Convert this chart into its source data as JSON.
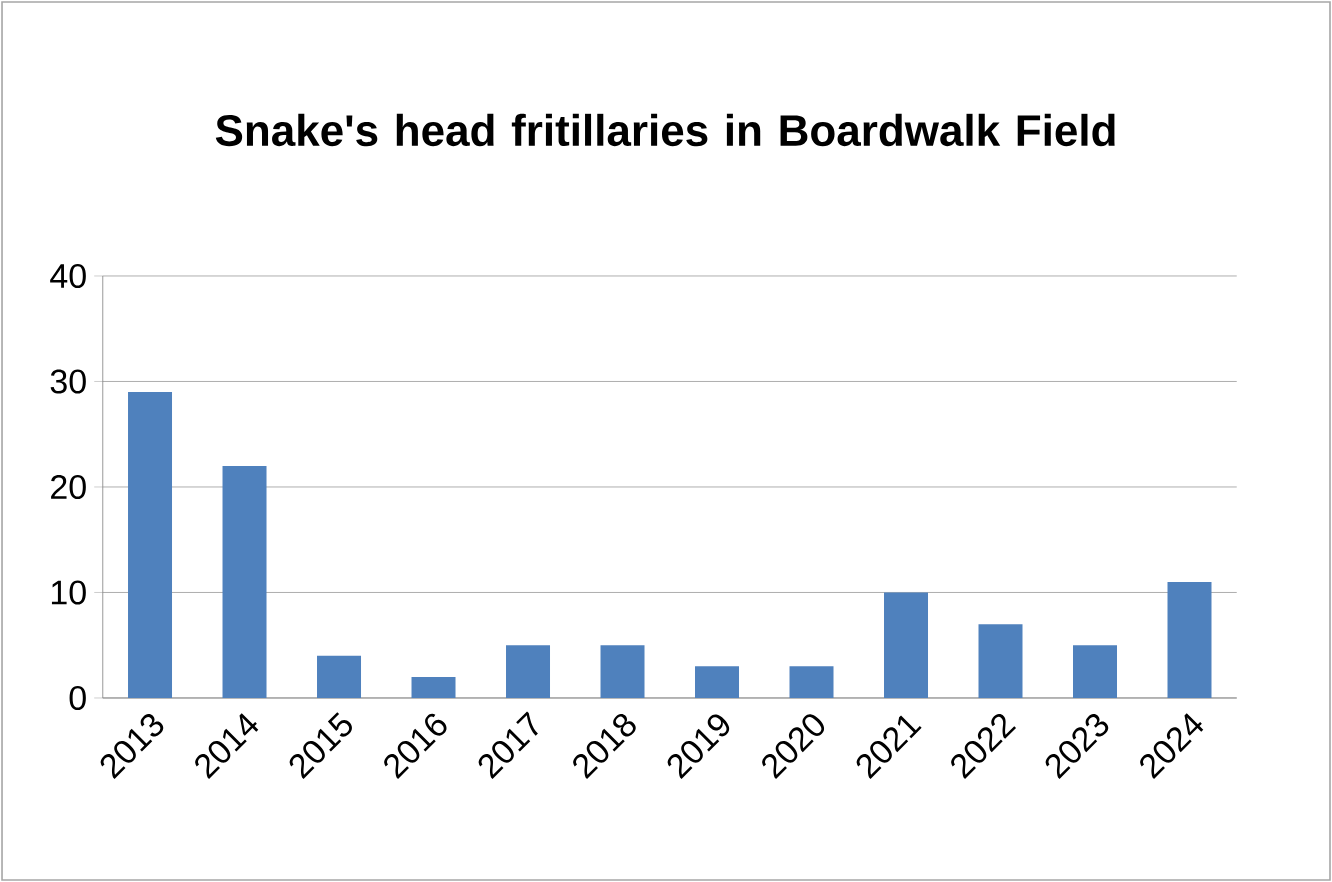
{
  "chart_data": {
    "type": "bar",
    "title": "Snake's head fritillaries in Boardwalk Field",
    "categories": [
      "2013",
      "2014",
      "2015",
      "2016",
      "2017",
      "2018",
      "2019",
      "2020",
      "2021",
      "2022",
      "2023",
      "2024"
    ],
    "values": [
      29,
      22,
      4,
      2,
      5,
      5,
      3,
      3,
      10,
      7,
      5,
      11
    ],
    "color": "#4f81bd",
    "ylim": [
      0,
      40
    ],
    "yticks": [
      0,
      10,
      20,
      30,
      40
    ],
    "grid": "y"
  }
}
